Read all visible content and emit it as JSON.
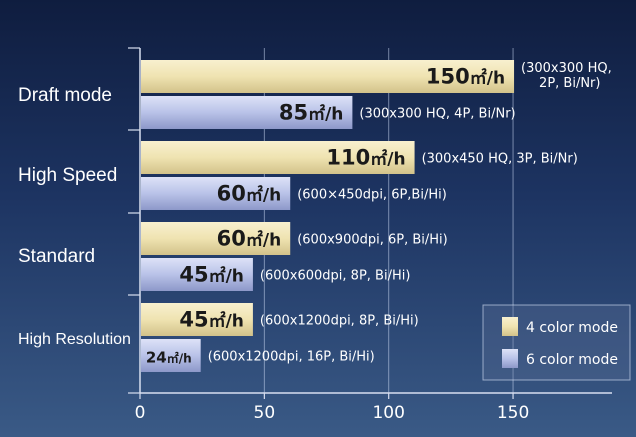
{
  "chart_data": {
    "type": "bar",
    "orientation": "horizontal",
    "categories": [
      "Draft mode",
      "High Speed",
      "Standard",
      "High Resolution"
    ],
    "unit": "m²/h",
    "series": [
      {
        "name": "4 color mode",
        "color": "#efe3b1",
        "values": [
          150,
          110,
          60,
          45
        ],
        "labels": [
          "150㎡/h",
          "110㎡/h",
          "60㎡/h",
          "45㎡/h"
        ],
        "notes": [
          "(300x300 HQ,\n2P, Bi/Nr)",
          "(300x450 HQ, 3P, Bi/Nr)",
          "(600x900dpi, 6P, Bi/Hi)",
          "(600x1200dpi, 8P, Bi/Hi)"
        ]
      },
      {
        "name": "6 color mode",
        "color": "#b9c2e8",
        "values": [
          85,
          60,
          45,
          24
        ],
        "labels": [
          "85㎡/h",
          "60㎡/h",
          "45㎡/h",
          "24㎡/h"
        ],
        "notes": [
          "(300x300 HQ, 4P, Bi/Nr)",
          "(600×450dpi, 6P,Bi/Hi)",
          "(600x600dpi, 8P, Bi/Hi)",
          "(600x1200dpi, 16P, Bi/Hi)"
        ]
      }
    ],
    "x_ticks": [
      0,
      50,
      100,
      150
    ],
    "xlim": [
      0,
      193
    ],
    "grid": true,
    "legend_position": "bottom-right",
    "title": "",
    "xlabel": "",
    "ylabel": ""
  }
}
